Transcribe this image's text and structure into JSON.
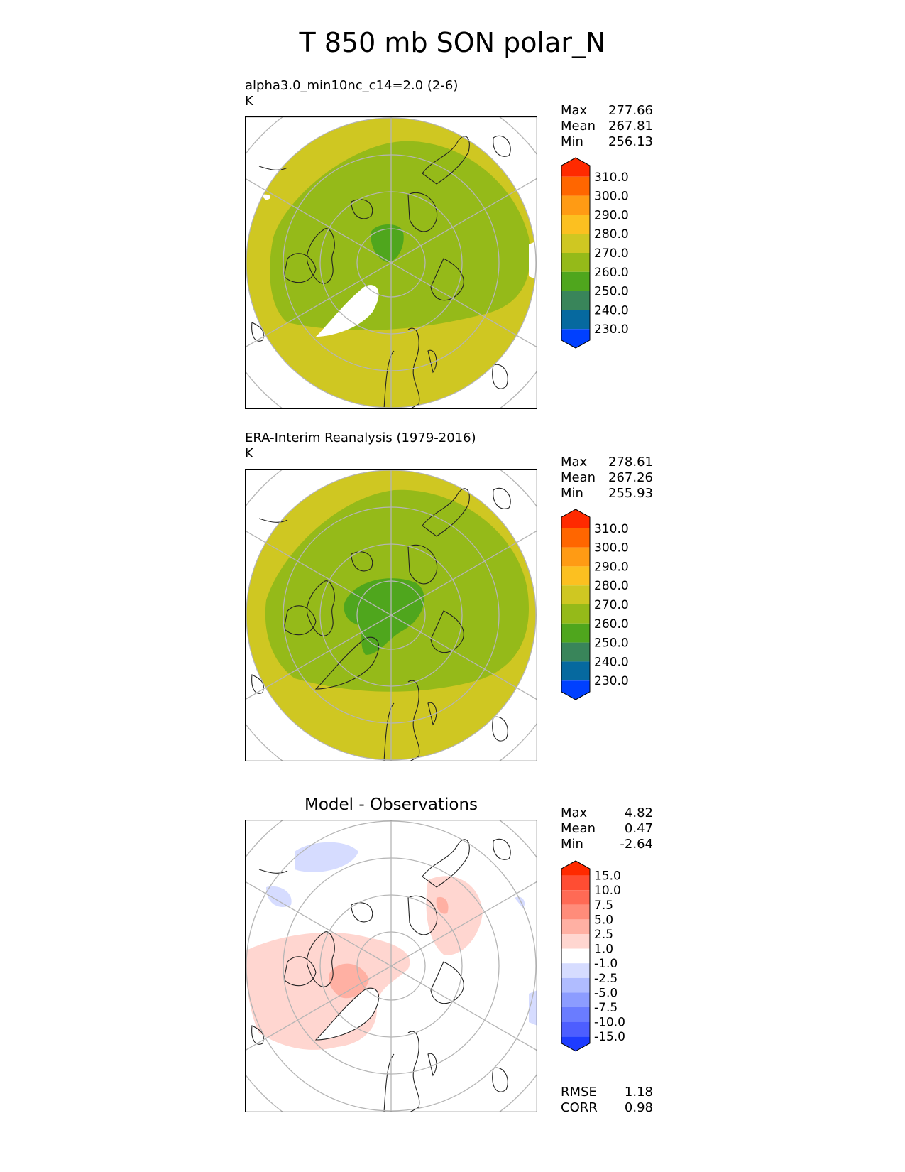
{
  "title": "T 850 mb SON polar_N",
  "panels": [
    {
      "id": "model",
      "subtitle": "alpha3.0_min10nc_c14=2.0 (2-6)",
      "units": "K",
      "stats": [
        {
          "label": "Max",
          "value": "277.66"
        },
        {
          "label": "Mean",
          "value": "267.81"
        },
        {
          "label": "Min",
          "value": "256.13"
        }
      ]
    },
    {
      "id": "obs",
      "subtitle": "ERA-Interim Reanalysis (1979-2016)",
      "units": "K",
      "stats": [
        {
          "label": "Max",
          "value": "278.61"
        },
        {
          "label": "Mean",
          "value": "267.26"
        },
        {
          "label": "Min",
          "value": "255.93"
        }
      ]
    },
    {
      "id": "diff",
      "title": "Model - Observations",
      "stats": [
        {
          "label": "Max",
          "value": "4.82"
        },
        {
          "label": "Mean",
          "value": "0.47"
        },
        {
          "label": "Min",
          "value": "-2.64"
        }
      ],
      "metrics": [
        {
          "label": "RMSE",
          "value": "1.18"
        },
        {
          "label": "CORR",
          "value": "0.98"
        }
      ]
    }
  ],
  "colorbars": {
    "temperature": {
      "ticks": [
        "310.0",
        "300.0",
        "290.0",
        "280.0",
        "270.0",
        "260.0",
        "250.0",
        "240.0",
        "230.0"
      ],
      "colors": [
        "#ff2a00",
        "#ff6600",
        "#ff9b14",
        "#fcc020",
        "#cfc722",
        "#95ba19",
        "#4fa61d",
        "#39855a",
        "#06699f",
        "#0040ff"
      ]
    },
    "difference": {
      "ticks": [
        "15.0",
        "10.0",
        "7.5",
        "5.0",
        "2.5",
        "1.0",
        "-1.0",
        "-2.5",
        "-5.0",
        "-7.5",
        "-10.0",
        "-15.0"
      ],
      "colors": [
        "#ff2a00",
        "#ff4d33",
        "#ff6a55",
        "#ff8c7a",
        "#ffb0a3",
        "#ffd6d0",
        "#ffffff",
        "#d6dcff",
        "#b0bcff",
        "#8c9cff",
        "#6a7cff",
        "#4d5eff",
        "#1e3cff"
      ]
    }
  },
  "chart_data": [
    {
      "type": "heatmap",
      "title": "alpha3.0_min10nc_c14=2.0 (2-6)",
      "units": "K",
      "projection": "north polar stereographic",
      "field": "T 850 mb SON",
      "summary": {
        "max": 277.66,
        "mean": 267.81,
        "min": 256.13
      },
      "levels": [
        230,
        240,
        250,
        260,
        270,
        280,
        290,
        300,
        310
      ]
    },
    {
      "type": "heatmap",
      "title": "ERA-Interim Reanalysis (1979-2016)",
      "units": "K",
      "projection": "north polar stereographic",
      "field": "T 850 mb SON",
      "summary": {
        "max": 278.61,
        "mean": 267.26,
        "min": 255.93
      },
      "levels": [
        230,
        240,
        250,
        260,
        270,
        280,
        290,
        300,
        310
      ]
    },
    {
      "type": "heatmap",
      "title": "Model - Observations",
      "projection": "north polar stereographic",
      "summary": {
        "max": 4.82,
        "mean": 0.47,
        "min": -2.64,
        "rmse": 1.18,
        "corr": 0.98
      },
      "levels": [
        -15.0,
        -10.0,
        -7.5,
        -5.0,
        -2.5,
        -1.0,
        1.0,
        2.5,
        5.0,
        7.5,
        10.0,
        15.0
      ]
    }
  ]
}
